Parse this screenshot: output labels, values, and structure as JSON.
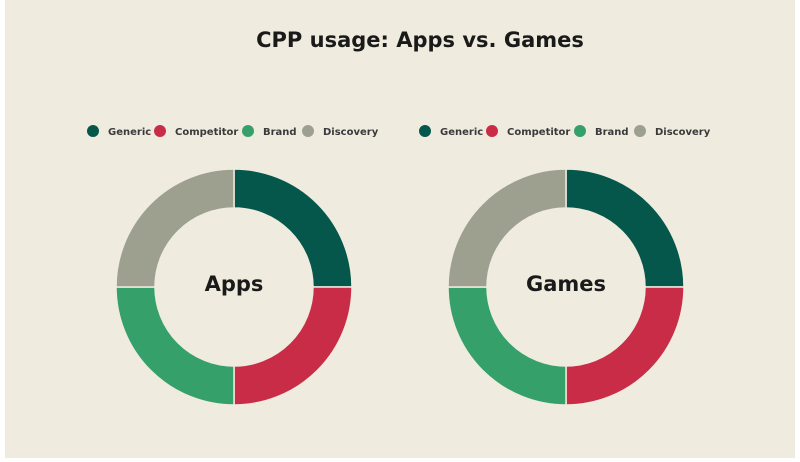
{
  "title": "CPP usage: Apps vs. Games",
  "chart_data": [
    {
      "type": "donut",
      "center_label": "Apps",
      "categories": [
        "Generic",
        "Competitor",
        "Brand",
        "Discovery"
      ],
      "values": [
        25,
        25,
        25,
        25
      ],
      "colors": [
        "#04574a",
        "#c92c47",
        "#35a06a",
        "#9d9f8f"
      ]
    },
    {
      "type": "donut",
      "center_label": "Games",
      "categories": [
        "Generic",
        "Competitor",
        "Brand",
        "Discovery"
      ],
      "values": [
        25,
        25,
        25,
        25
      ],
      "colors": [
        "#04574a",
        "#c92c47",
        "#35a06a",
        "#9d9f8f"
      ]
    }
  ]
}
